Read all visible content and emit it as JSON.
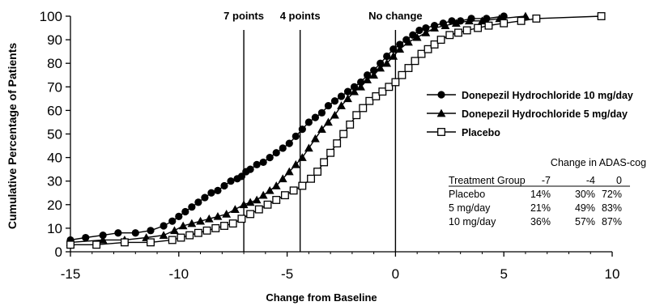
{
  "chart_data": {
    "type": "line",
    "title": "",
    "xlabel": "Change from Baseline",
    "ylabel": "Cumulative Percentage of Patients",
    "xlim": [
      -15,
      10
    ],
    "ylim": [
      0,
      100
    ],
    "x_ticks": [
      -15,
      -10,
      -5,
      0,
      5,
      10
    ],
    "x_tick_labels": [
      "-15",
      "-10",
      "-5",
      "0",
      "5",
      "10"
    ],
    "y_ticks": [
      0,
      10,
      20,
      30,
      40,
      50,
      60,
      70,
      80,
      90,
      100
    ],
    "y_tick_labels": [
      "0",
      "10",
      "20",
      "30",
      "40",
      "50",
      "60",
      "70",
      "80",
      "90",
      "100"
    ],
    "grid": false,
    "legend_position": "right",
    "reference_lines": [
      {
        "x": -7,
        "label": "7 points"
      },
      {
        "x": -4.4,
        "label": "4 points"
      },
      {
        "x": 0,
        "label": "No change"
      }
    ],
    "series": [
      {
        "name": "Donepezil Hydrochloride 10 mg/day",
        "marker": "filled-circle",
        "color": "#000000",
        "x": [
          -15,
          -14.3,
          -13.5,
          -12.8,
          -12,
          -11.3,
          -10.7,
          -10.3,
          -10,
          -9.7,
          -9.4,
          -9.1,
          -8.8,
          -8.5,
          -8.2,
          -7.9,
          -7.6,
          -7.3,
          -7.1,
          -6.9,
          -6.7,
          -6.4,
          -6.1,
          -5.8,
          -5.5,
          -5.2,
          -4.9,
          -4.6,
          -4.3,
          -4.0,
          -3.7,
          -3.4,
          -3.1,
          -2.8,
          -2.5,
          -2.2,
          -1.9,
          -1.6,
          -1.3,
          -1.0,
          -0.7,
          -0.4,
          -0.1,
          0.2,
          0.5,
          0.8,
          1.1,
          1.4,
          1.8,
          2.2,
          2.6,
          3.0,
          3.5,
          4.2,
          5.0
        ],
        "y": [
          5,
          6,
          7,
          8,
          8,
          9,
          11,
          13,
          15,
          17,
          19,
          21,
          23,
          25,
          26,
          28,
          30,
          31,
          32,
          34,
          35,
          37,
          38,
          40,
          42,
          44,
          46,
          49,
          52,
          55,
          57,
          59,
          62,
          64,
          66,
          68,
          70,
          72,
          75,
          77,
          80,
          83,
          86,
          88,
          90,
          92,
          94,
          95,
          96,
          97,
          98,
          98,
          99,
          99,
          100
        ]
      },
      {
        "name": "Donepezil Hydrochloride 5 mg/day",
        "marker": "filled-triangle",
        "color": "#000000",
        "x": [
          -15,
          -13.5,
          -12.5,
          -11.5,
          -10.7,
          -10.2,
          -9.8,
          -9.4,
          -9.0,
          -8.6,
          -8.2,
          -7.8,
          -7.4,
          -7.0,
          -6.7,
          -6.4,
          -6.1,
          -5.8,
          -5.5,
          -5.2,
          -4.9,
          -4.6,
          -4.3,
          -4.0,
          -3.7,
          -3.4,
          -3.1,
          -2.8,
          -2.5,
          -2.2,
          -1.9,
          -1.6,
          -1.3,
          -1.0,
          -0.7,
          -0.4,
          -0.1,
          0.2,
          0.6,
          1.0,
          1.4,
          1.8,
          2.3,
          2.8,
          3.4,
          4.0,
          4.8,
          6.0
        ],
        "y": [
          4,
          5,
          5,
          6,
          7,
          9,
          11,
          12,
          13,
          14,
          15,
          16,
          18,
          20,
          21,
          22,
          24,
          26,
          28,
          31,
          34,
          37,
          40,
          44,
          48,
          52,
          55,
          58,
          62,
          65,
          68,
          70,
          73,
          75,
          78,
          80,
          83,
          86,
          89,
          91,
          93,
          95,
          96,
          97,
          98,
          98,
          99,
          100
        ]
      },
      {
        "name": "Placebo",
        "marker": "open-square",
        "color": "#000000",
        "x": [
          -15,
          -13.8,
          -12.5,
          -11.3,
          -10.3,
          -9.9,
          -9.5,
          -9.1,
          -8.7,
          -8.3,
          -7.9,
          -7.5,
          -7.1,
          -6.7,
          -6.3,
          -5.9,
          -5.5,
          -5.1,
          -4.7,
          -4.3,
          -3.9,
          -3.6,
          -3.3,
          -3.0,
          -2.7,
          -2.4,
          -2.1,
          -1.8,
          -1.5,
          -1.2,
          -0.9,
          -0.6,
          -0.3,
          0.0,
          0.3,
          0.6,
          0.9,
          1.2,
          1.5,
          1.8,
          2.1,
          2.5,
          2.9,
          3.3,
          3.8,
          4.3,
          5.0,
          5.8,
          6.5,
          9.5
        ],
        "y": [
          3,
          3,
          4,
          4,
          5,
          6,
          7,
          8,
          9,
          10,
          11,
          12,
          14,
          16,
          18,
          20,
          22,
          24,
          26,
          28,
          31,
          34,
          38,
          42,
          46,
          50,
          54,
          58,
          61,
          64,
          66,
          68,
          70,
          72,
          75,
          78,
          81,
          84,
          86,
          88,
          90,
          92,
          93,
          94,
          95,
          96,
          97,
          98,
          99,
          100
        ]
      }
    ],
    "summary_table": {
      "title": "Change in ADAS-cog",
      "headers": [
        "Treatment Group",
        "-7",
        "-4",
        "0"
      ],
      "rows": [
        [
          "Placebo",
          "14%",
          "30%",
          "72%"
        ],
        [
          "5 mg/day",
          "21%",
          "49%",
          "83%"
        ],
        [
          "10 mg/day",
          "36%",
          "57%",
          "87%"
        ]
      ]
    }
  }
}
